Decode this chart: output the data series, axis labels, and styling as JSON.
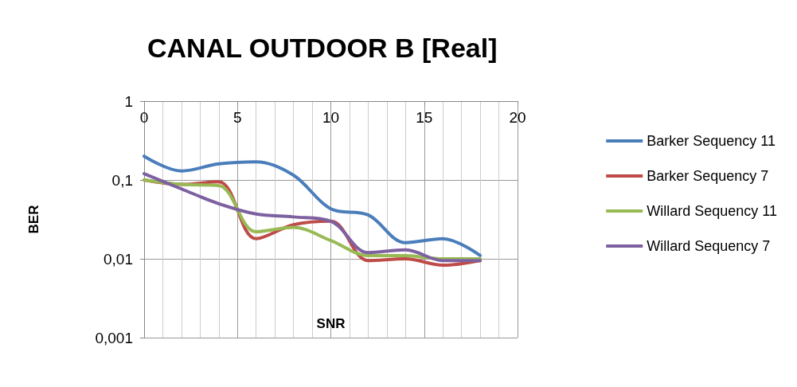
{
  "chart_data": {
    "type": "line",
    "title": "CANAL OUTDOOR B [Real]",
    "xlabel": "SNR",
    "ylabel": "BER",
    "x": [
      0,
      2,
      4,
      6,
      8,
      10,
      12,
      14,
      16,
      18
    ],
    "series": [
      {
        "name": "Barker Sequency 11",
        "color": "#4a7ebb",
        "values": [
          0.2,
          0.13,
          0.16,
          0.17,
          0.115,
          0.043,
          0.036,
          0.016,
          0.018,
          0.011
        ]
      },
      {
        "name": "Barker Sequency 7",
        "color": "#be4b48",
        "values": [
          0.1,
          0.088,
          0.095,
          0.018,
          0.027,
          0.03,
          0.0095,
          0.01,
          0.0083,
          0.0095
        ]
      },
      {
        "name": "Willard Sequency 11",
        "color": "#98b954",
        "values": [
          0.1,
          0.088,
          0.085,
          0.022,
          0.025,
          0.017,
          0.011,
          0.011,
          0.01,
          0.01
        ]
      },
      {
        "name": "Willard Sequency 7",
        "color": "#7d60a0",
        "values": [
          0.12,
          0.077,
          0.05,
          0.037,
          0.034,
          0.03,
          0.012,
          0.013,
          0.0095,
          0.0095
        ]
      }
    ],
    "xlim": [
      0,
      20
    ],
    "xticks": [
      0,
      5,
      10,
      15,
      20
    ],
    "ylim": [
      0.001,
      1
    ],
    "yticks": [
      {
        "value": 1,
        "label": "1"
      },
      {
        "value": 0.1,
        "label": "0,1"
      },
      {
        "value": 0.01,
        "label": "0,01"
      },
      {
        "value": 0.001,
        "label": "0,001"
      }
    ],
    "log": "y",
    "grid": true,
    "legend": "right",
    "marker": "none",
    "line_style": "solid"
  }
}
